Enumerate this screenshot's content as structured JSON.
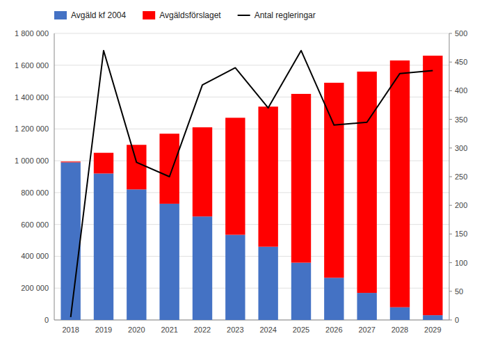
{
  "chart_data": {
    "type": "bar",
    "stacked": true,
    "grid": true,
    "legend": "top",
    "categories": [
      2018,
      2019,
      2020,
      2021,
      2022,
      2023,
      2024,
      2025,
      2026,
      2027,
      2028,
      2029
    ],
    "series": [
      {
        "name": "Avgäld kf 2004",
        "type": "bar",
        "color": "#4472C4",
        "values": [
          990000,
          920000,
          820000,
          730000,
          650000,
          535000,
          460000,
          360000,
          265000,
          170000,
          80000,
          30000
        ]
      },
      {
        "name": "Avgäldsförslaget",
        "type": "bar",
        "color": "#FF0000",
        "values": [
          5000,
          130000,
          280000,
          440000,
          560000,
          735000,
          880000,
          1060000,
          1225000,
          1390000,
          1550000,
          1630000
        ]
      },
      {
        "name": "Antal regleringar",
        "type": "line",
        "axis": "y2",
        "color": "#000000",
        "values": [
          5,
          470,
          275,
          250,
          410,
          440,
          370,
          470,
          340,
          345,
          430,
          435
        ]
      }
    ],
    "ylim": [
      0,
      1800000
    ],
    "yticks": [
      0,
      {
        "value": 200000,
        "label": "200 000"
      },
      {
        "value": 400000,
        "label": "400 000"
      },
      {
        "value": 600000,
        "label": "600 000"
      },
      {
        "value": 800000,
        "label": "800 000"
      },
      {
        "value": 1000000,
        "label": "1 000 000"
      },
      {
        "value": 1200000,
        "label": "1 200 000"
      },
      {
        "value": 1400000,
        "label": "1 400 000"
      },
      {
        "value": 1600000,
        "label": "1 600 000"
      },
      {
        "value": 1800000,
        "label": "1 800 000"
      }
    ],
    "y2lim": [
      0,
      500
    ],
    "y2ticks": [
      0,
      50,
      100,
      150,
      200,
      250,
      300,
      350,
      400,
      450,
      500
    ]
  }
}
